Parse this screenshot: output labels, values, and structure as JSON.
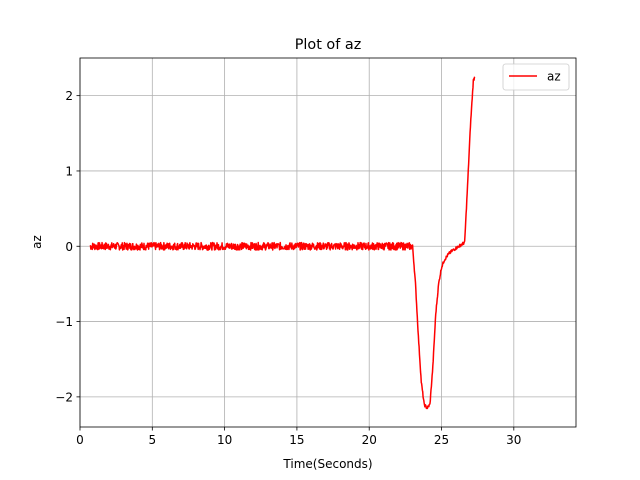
{
  "chart_data": {
    "type": "line",
    "title": "Plot of az",
    "xlabel": "Time(Seconds)",
    "ylabel": "az",
    "xlim": [
      0,
      34.3
    ],
    "ylim": [
      -2.4,
      2.5
    ],
    "xticks": [
      0,
      5,
      10,
      15,
      20,
      25,
      30
    ],
    "xtick_labels": [
      "0",
      "5",
      "10",
      "15",
      "20",
      "25",
      "30"
    ],
    "yticks": [
      -2,
      -1,
      0,
      1,
      2
    ],
    "ytick_labels": [
      "−2",
      "−1",
      "0",
      "1",
      "2"
    ],
    "grid": true,
    "legend": {
      "position": "top-right",
      "entries": [
        "az"
      ]
    },
    "series": [
      {
        "name": "az",
        "color": "#ff0000",
        "noise_amplitude": 0.05,
        "x": [
          0.7,
          23.0,
          23.2,
          23.4,
          23.6,
          23.8,
          24.0,
          24.2,
          24.4,
          24.6,
          24.8,
          25.0,
          25.2,
          25.5,
          25.8,
          26.2,
          26.6,
          26.8,
          27.0,
          27.2,
          27.3
        ],
        "y": [
          0.0,
          0.0,
          -0.5,
          -1.2,
          -1.8,
          -2.1,
          -2.15,
          -2.1,
          -1.6,
          -0.9,
          -0.5,
          -0.28,
          -0.18,
          -0.1,
          -0.05,
          0.0,
          0.05,
          0.8,
          1.6,
          2.2,
          2.25
        ]
      }
    ]
  }
}
